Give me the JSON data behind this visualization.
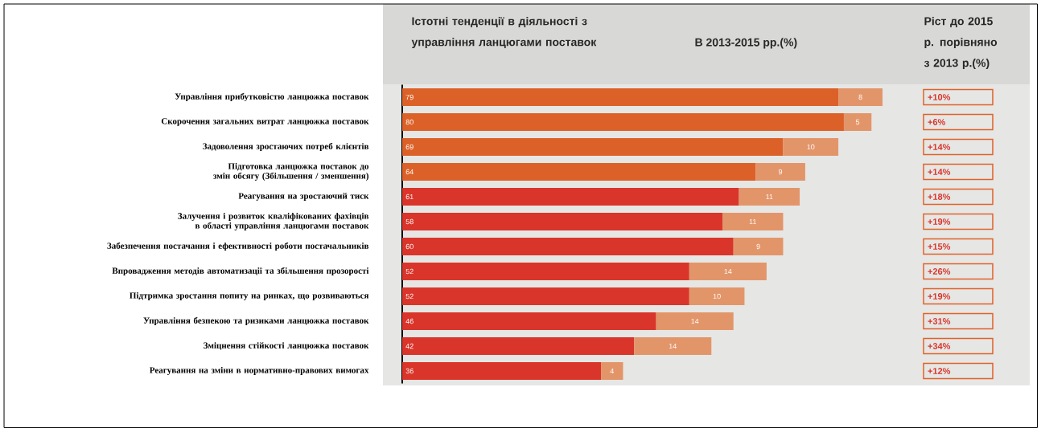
{
  "chart_data": {
    "type": "bar",
    "orientation": "horizontal",
    "stacked": true,
    "data_labels": true,
    "title": "Істотні тенденції в діяльності з управління ланцюгами поставок",
    "subtitle": "В 2013-2015 рр.(%)",
    "categories": [
      "Управління прибутковістю ланцюжка поставок",
      "Скорочення загальних витрат ланцюжка поставок",
      "Задоволення зростаючих потреб клієнтів",
      "Підготовка ланцюжка поставок до змін обсягу (Збільшення / зменшення)",
      "Реагування на зростаючий тиск",
      "Залучення і розвиток кваліфікованих фахівців в області управління ланцюгами поставок",
      "Забезпечення постачання і ефективності роботи постачальників",
      "Впровадження методів автоматизації та збільшення прозорості",
      "Підтримка зростання попиту на ринках, що розвиваються",
      "Управління безпекою та ризиками ланцюжка поставок",
      "Зміцнення стійкості ланцюжка поставок",
      "Реагування на зміни в нормативно-правових вимогах"
    ],
    "series": [
      {
        "colors": [
          "#dc6128",
          "#dc6128",
          "#dc6128",
          "#dc6128",
          "#d9352a",
          "#d9352a",
          "#d9352a",
          "#d9352a",
          "#d9352a",
          "#d9352a",
          "#d9352a",
          "#d9352a"
        ],
        "values": [
          79,
          80,
          69,
          64,
          61,
          58,
          60,
          52,
          52,
          46,
          42,
          36
        ]
      },
      {
        "color": "#e3956a",
        "values": [
          8,
          5,
          10,
          9,
          11,
          11,
          9,
          14,
          10,
          14,
          14,
          4
        ]
      }
    ],
    "annotations": [
      "Ріст до 2015 р. порівняно з 2013 р.(%)",
      "+10%",
      "+6%",
      "+14%",
      "+14%",
      "+18%",
      "+19%",
      "+15%",
      "+26%",
      "+19%",
      "+31%",
      "+34%",
      "+12%"
    ]
  }
}
